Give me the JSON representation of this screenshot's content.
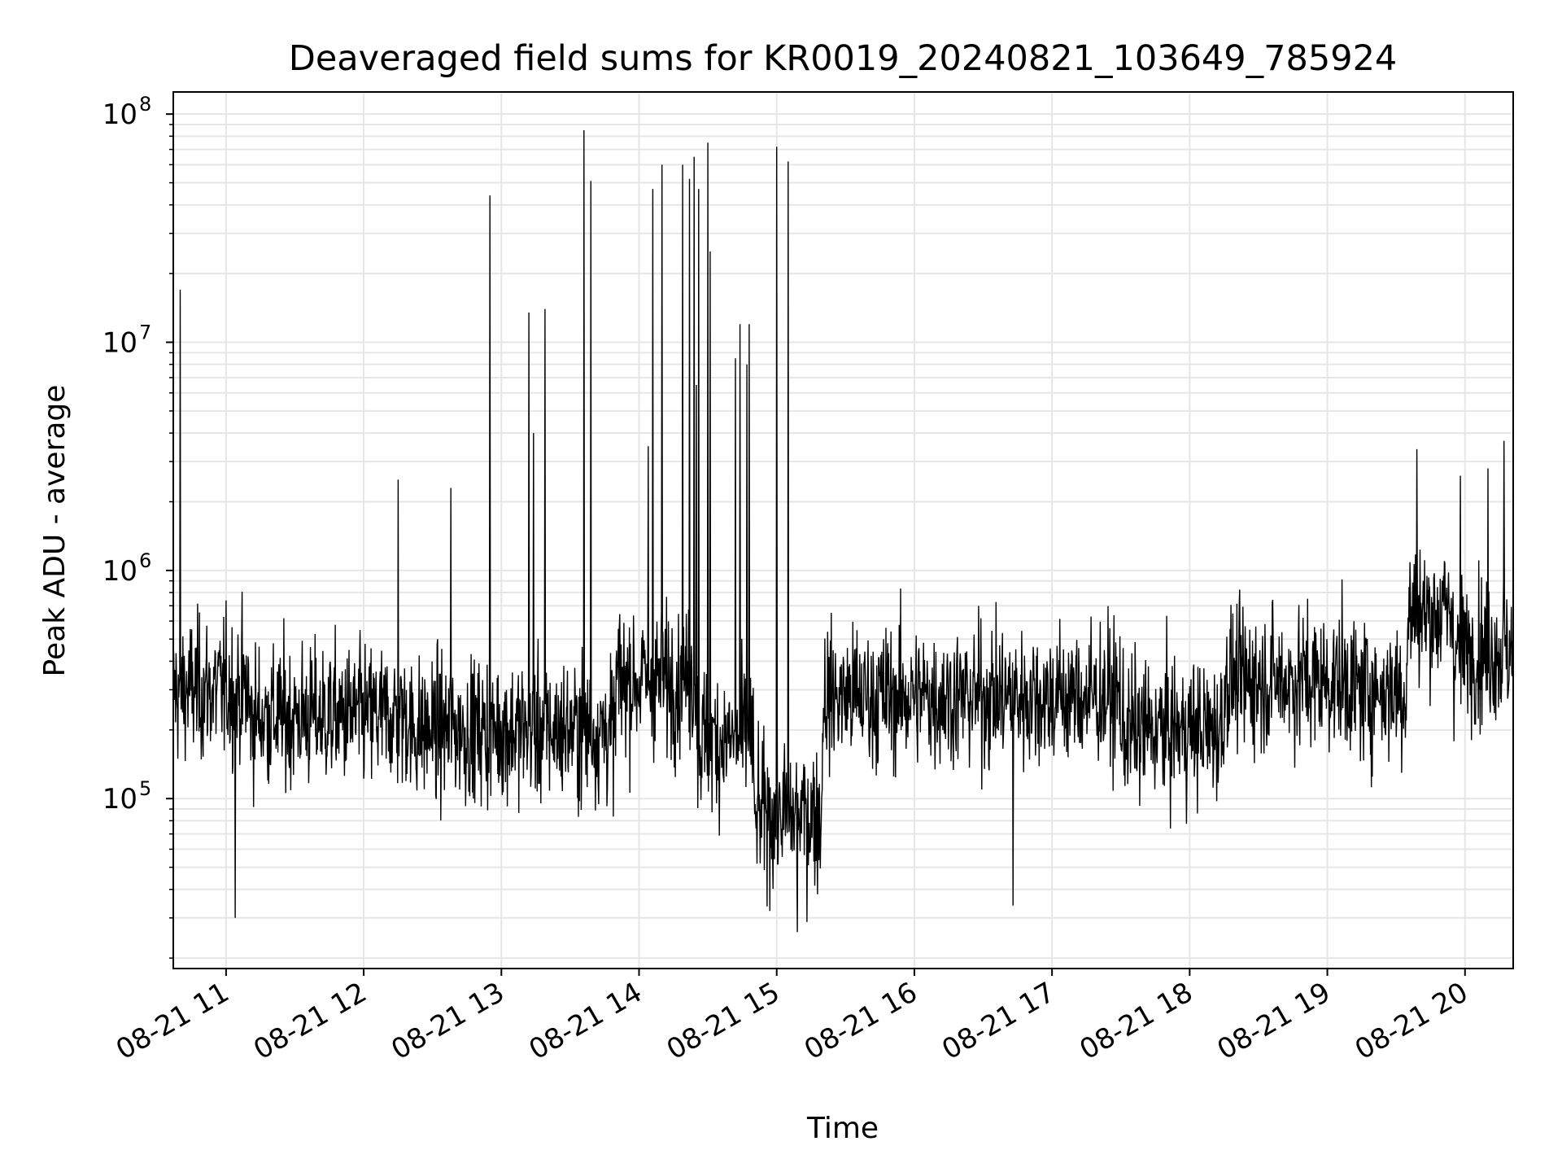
{
  "chart_data": {
    "type": "line",
    "title": "Deaveraged field sums for KR0019_20240821_103649_785924",
    "xlabel": "Time",
    "ylabel": "Peak ADU - average",
    "yscale": "log",
    "ylim": [
      18000,
      125000000
    ],
    "xlim": [
      "2024-08-21 10:37",
      "2024-08-21 20:21"
    ],
    "grid": true,
    "line_color": "#000000",
    "grid_color": "#e6e6e6",
    "x_ticks": [
      {
        "t": "2024-08-21 11:00",
        "label": "08-21 11"
      },
      {
        "t": "2024-08-21 12:00",
        "label": "08-21 12"
      },
      {
        "t": "2024-08-21 13:00",
        "label": "08-21 13"
      },
      {
        "t": "2024-08-21 14:00",
        "label": "08-21 14"
      },
      {
        "t": "2024-08-21 15:00",
        "label": "08-21 15"
      },
      {
        "t": "2024-08-21 16:00",
        "label": "08-21 16"
      },
      {
        "t": "2024-08-21 17:00",
        "label": "08-21 17"
      },
      {
        "t": "2024-08-21 18:00",
        "label": "08-21 18"
      },
      {
        "t": "2024-08-21 19:00",
        "label": "08-21 19"
      },
      {
        "t": "2024-08-21 20:00",
        "label": "08-21 20"
      }
    ],
    "y_ticks": [
      {
        "value": 100000,
        "base": "10",
        "exp": "5"
      },
      {
        "value": 1000000,
        "base": "10",
        "exp": "6"
      },
      {
        "value": 10000000,
        "base": "10",
        "exp": "7"
      },
      {
        "value": 100000000,
        "base": "10",
        "exp": "8"
      }
    ],
    "segments": [
      {
        "start": "2024-08-21 10:37",
        "end": "2024-08-21 11:10",
        "level": 300000
      },
      {
        "start": "2024-08-21 11:10",
        "end": "2024-08-21 12:20",
        "level": 230000
      },
      {
        "start": "2024-08-21 12:20",
        "end": "2024-08-21 13:50",
        "level": 200000
      },
      {
        "start": "2024-08-21 13:50",
        "end": "2024-08-21 14:25",
        "level": 330000
      },
      {
        "start": "2024-08-21 14:25",
        "end": "2024-08-21 14:50",
        "level": 180000
      },
      {
        "start": "2024-08-21 14:50",
        "end": "2024-08-21 15:20",
        "level": 85000
      },
      {
        "start": "2024-08-21 15:20",
        "end": "2024-08-21 16:40",
        "level": 280000
      },
      {
        "start": "2024-08-21 16:40",
        "end": "2024-08-21 17:30",
        "level": 280000
      },
      {
        "start": "2024-08-21 17:30",
        "end": "2024-08-21 18:15",
        "level": 200000
      },
      {
        "start": "2024-08-21 18:15",
        "end": "2024-08-21 19:10",
        "level": 330000
      },
      {
        "start": "2024-08-21 19:10",
        "end": "2024-08-21 19:35",
        "level": 300000
      },
      {
        "start": "2024-08-21 19:35",
        "end": "2024-08-21 19:55",
        "level": 650000
      },
      {
        "start": "2024-08-21 19:55",
        "end": "2024-08-21 20:21",
        "level": 450000
      }
    ],
    "spikes": [
      {
        "t": "2024-08-21 10:40",
        "value": 17000000
      },
      {
        "t": "2024-08-21 11:04",
        "value": 30000
      },
      {
        "t": "2024-08-21 12:15",
        "value": 2500000
      },
      {
        "t": "2024-08-21 12:38",
        "value": 2300000
      },
      {
        "t": "2024-08-21 12:55",
        "value": 44000000
      },
      {
        "t": "2024-08-21 13:12",
        "value": 13500000
      },
      {
        "t": "2024-08-21 13:14",
        "value": 4000000
      },
      {
        "t": "2024-08-21 13:19",
        "value": 14000000
      },
      {
        "t": "2024-08-21 13:36",
        "value": 85000000
      },
      {
        "t": "2024-08-21 13:39",
        "value": 51000000
      },
      {
        "t": "2024-08-21 14:04",
        "value": 3500000
      },
      {
        "t": "2024-08-21 14:06",
        "value": 47000000
      },
      {
        "t": "2024-08-21 14:10",
        "value": 60000000
      },
      {
        "t": "2024-08-21 14:19",
        "value": 60000000
      },
      {
        "t": "2024-08-21 14:22",
        "value": 52000000
      },
      {
        "t": "2024-08-21 14:24",
        "value": 65000000
      },
      {
        "t": "2024-08-21 14:25",
        "value": 6500000
      },
      {
        "t": "2024-08-21 14:26",
        "value": 47000000
      },
      {
        "t": "2024-08-21 14:30",
        "value": 75000000
      },
      {
        "t": "2024-08-21 14:31",
        "value": 25000000
      },
      {
        "t": "2024-08-21 14:42",
        "value": 8500000
      },
      {
        "t": "2024-08-21 14:44",
        "value": 12000000
      },
      {
        "t": "2024-08-21 14:47",
        "value": 8000000
      },
      {
        "t": "2024-08-21 14:48",
        "value": 12000000
      },
      {
        "t": "2024-08-21 15:00",
        "value": 72000000
      },
      {
        "t": "2024-08-21 15:05",
        "value": 62000000
      },
      {
        "t": "2024-08-21 15:09",
        "value": 26000
      },
      {
        "t": "2024-08-21 16:43",
        "value": 34000
      },
      {
        "t": "2024-08-21 19:39",
        "value": 3400000
      },
      {
        "t": "2024-08-21 19:58",
        "value": 2600000
      },
      {
        "t": "2024-08-21 20:10",
        "value": 2800000
      },
      {
        "t": "2024-08-21 20:17",
        "value": 3700000
      }
    ]
  }
}
